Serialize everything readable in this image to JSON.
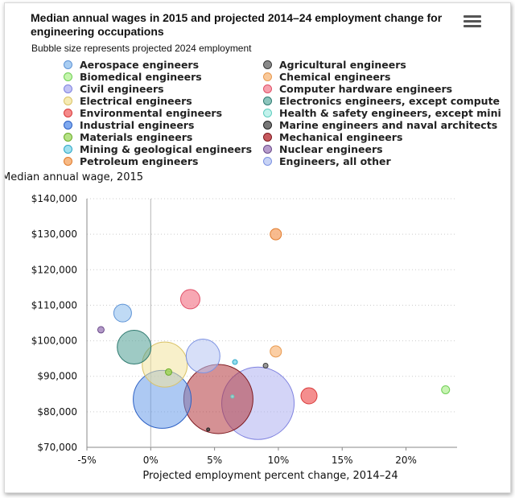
{
  "chart_data": {
    "type": "scatter",
    "title": "Median annual wages in 2015 and projected 2014–24 employment change for engineering occupations",
    "subtitle": "Bubble size represents projected 2024 employment",
    "xlabel": "Projected employment percent change, 2014–24",
    "ylabel": "Median annual wage, 2015",
    "xlim": [
      -5,
      24
    ],
    "ylim": [
      70000,
      140000
    ],
    "x_ticks": [
      -5,
      0,
      5,
      10,
      15,
      20
    ],
    "x_tick_labels": [
      "-5%",
      "0%",
      "5%",
      "10%",
      "15%",
      "20%"
    ],
    "y_ticks": [
      70000,
      80000,
      90000,
      100000,
      110000,
      120000,
      130000,
      140000
    ],
    "y_tick_labels": [
      "$70,000",
      "$80,000",
      "$90,000",
      "$100,000",
      "$110,000",
      "$120,000",
      "$130,000",
      "$140,000"
    ],
    "grid": "horizontal dotted",
    "legend": "top",
    "series": [
      {
        "name": "Aerospace engineers",
        "x": -2.2,
        "y": 107800,
        "size": 11,
        "color": "#a9cdf2"
      },
      {
        "name": "Agricultural engineers",
        "x": 9.0,
        "y": 93000,
        "size": 3,
        "color": "#7a7a7a"
      },
      {
        "name": "Biomedical engineers",
        "x": 23.1,
        "y": 86200,
        "size": 5,
        "color": "#b6f09a"
      },
      {
        "name": "Chemical engineers",
        "x": 9.8,
        "y": 97000,
        "size": 7,
        "color": "#f9be86"
      },
      {
        "name": "Civil engineers",
        "x": 8.4,
        "y": 82400,
        "size": 45,
        "color": "#aeb0f0"
      },
      {
        "name": "Computer hardware engineers",
        "x": 3.1,
        "y": 111700,
        "size": 12,
        "color": "#f4899a"
      },
      {
        "name": "Electrical engineers",
        "x": 1.1,
        "y": 93300,
        "size": 28,
        "color": "#f2e49e"
      },
      {
        "name": "Electronics engineers, except computer",
        "x": -1.3,
        "y": 98200,
        "size": 21,
        "color": "#4f9e93"
      },
      {
        "name": "Environmental engineers",
        "x": 12.4,
        "y": 84500,
        "size": 10,
        "color": "#f06868"
      },
      {
        "name": "Health & safety engineers, except mining safety engineers and inspectors",
        "x": 6.4,
        "y": 84300,
        "size": 2,
        "color": "#9ee6dc"
      },
      {
        "name": "Industrial engineers",
        "x": 0.9,
        "y": 83500,
        "size": 36,
        "color": "#6a9cea"
      },
      {
        "name": "Marine engineers and naval architects",
        "x": 4.5,
        "y": 75000,
        "size": 2,
        "color": "#3a3a3a"
      },
      {
        "name": "Materials engineers",
        "x": 1.4,
        "y": 91200,
        "size": 4,
        "color": "#9ad44a"
      },
      {
        "name": "Mechanical engineers",
        "x": 5.3,
        "y": 83600,
        "size": 43,
        "color": "#b3363c"
      },
      {
        "name": "Mining & geological engineers",
        "x": 6.6,
        "y": 94000,
        "size": 3,
        "color": "#6fd0e6"
      },
      {
        "name": "Nuclear engineers",
        "x": -3.9,
        "y": 103100,
        "size": 4,
        "color": "#9a78b5"
      },
      {
        "name": "Petroleum engineers",
        "x": 9.8,
        "y": 130000,
        "size": 7,
        "color": "#f5a468"
      },
      {
        "name": "Engineers, all other",
        "x": 4.1,
        "y": 95700,
        "size": 21,
        "color": "#b6c4f2"
      }
    ]
  },
  "legend_items": [
    {
      "label": "Aerospace engineers",
      "color": "#a9cdf2",
      "stroke": "#5f94d6"
    },
    {
      "label": "Agricultural engineers",
      "color": "#8a8a8a",
      "stroke": "#3a3a3a"
    },
    {
      "label": "Biomedical engineers",
      "color": "#c5f5ad",
      "stroke": "#6fce55"
    },
    {
      "label": "Chemical engineers",
      "color": "#f9c99a",
      "stroke": "#e89a50"
    },
    {
      "label": "Civil engineers",
      "color": "#c2c3f4",
      "stroke": "#7f82e0"
    },
    {
      "label": "Computer hardware engineers",
      "color": "#f6a1ae",
      "stroke": "#e05068"
    },
    {
      "label": "Electrical engineers",
      "color": "#f6ebb4",
      "stroke": "#d9c266"
    },
    {
      "label": "Electronics engineers, except compute",
      "color": "#8dc5bd",
      "stroke": "#2f7a70"
    },
    {
      "label": "Environmental engineers",
      "color": "#f58a8a",
      "stroke": "#d83a3a"
    },
    {
      "label": "Health & safety engineers, except mini",
      "color": "#c2f2ec",
      "stroke": "#5fcdbf"
    },
    {
      "label": "Industrial engineers",
      "color": "#7fa9ef",
      "stroke": "#2b5fc4"
    },
    {
      "label": "Marine engineers and naval architects",
      "color": "#777777",
      "stroke": "#222222"
    },
    {
      "label": "Materials engineers",
      "color": "#b5e285",
      "stroke": "#6aaa2a"
    },
    {
      "label": "Mechanical engineers",
      "color": "#c6595e",
      "stroke": "#7d1a20"
    },
    {
      "label": "Mining & geological engineers",
      "color": "#a1e0ef",
      "stroke": "#2da7c7"
    },
    {
      "label": "Nuclear engineers",
      "color": "#b69ccc",
      "stroke": "#6b4b8a"
    },
    {
      "label": "Petroleum engineers",
      "color": "#f7b985",
      "stroke": "#e07b2c"
    },
    {
      "label": "Engineers, all other",
      "color": "#c8d3f5",
      "stroke": "#7c92e2"
    }
  ],
  "menu_icon": "hamburger-menu-icon"
}
